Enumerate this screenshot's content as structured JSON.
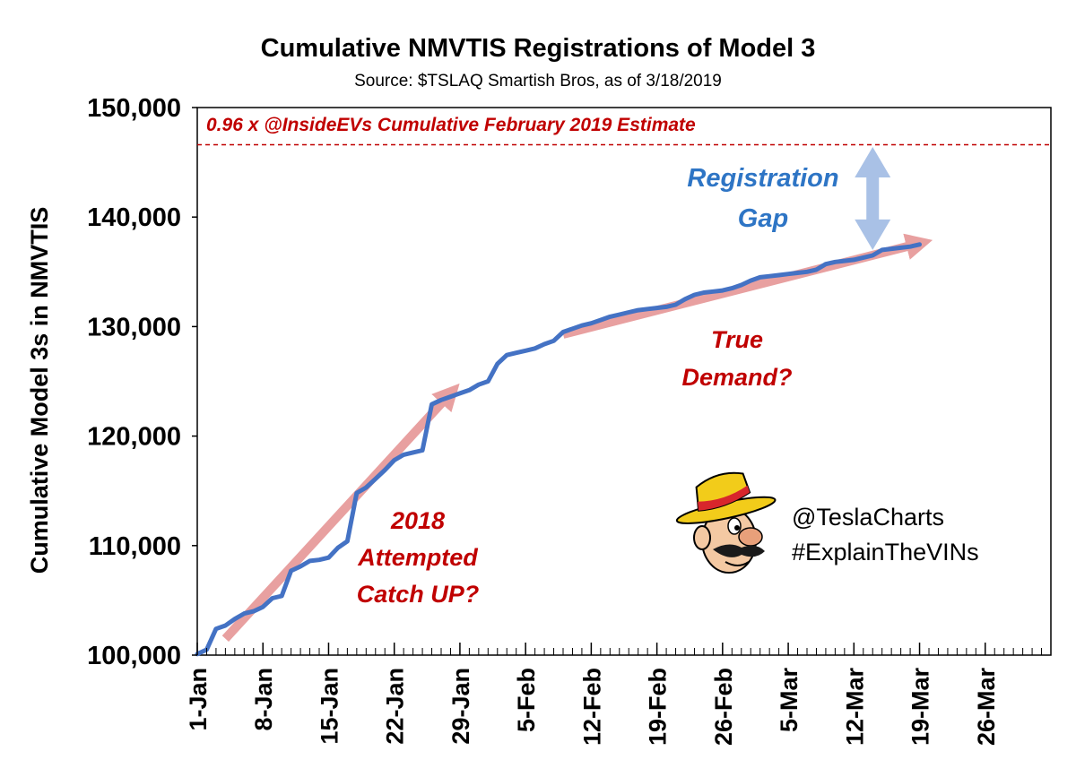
{
  "chart_data": {
    "type": "line",
    "title": "Cumulative NMVTIS Registrations of Model 3",
    "subtitle": "Source: $TSLAQ Smartish Bros, as of 3/18/2019",
    "xlabel": "",
    "ylabel": "Cumulative Model 3s in NMVTIS",
    "ylim": [
      100000,
      150000
    ],
    "yticks": [
      "100,000",
      "110,000",
      "120,000",
      "130,000",
      "140,000",
      "150,000"
    ],
    "xlim": [
      "1-Jan",
      "2-Apr"
    ],
    "xticks": [
      "1-Jan",
      "8-Jan",
      "15-Jan",
      "22-Jan",
      "29-Jan",
      "5-Feb",
      "12-Feb",
      "19-Feb",
      "26-Feb",
      "5-Mar",
      "12-Mar",
      "19-Mar",
      "26-Mar"
    ],
    "grid": false,
    "series": [
      {
        "color": "#4472c4",
        "points": [
          [
            "1-Jan",
            100100
          ],
          [
            "2-Jan",
            100500
          ],
          [
            "3-Jan",
            102400
          ],
          [
            "4-Jan",
            102700
          ],
          [
            "5-Jan",
            103300
          ],
          [
            "6-Jan",
            103800
          ],
          [
            "7-Jan",
            104000
          ],
          [
            "8-Jan",
            104400
          ],
          [
            "9-Jan",
            105200
          ],
          [
            "10-Jan",
            105400
          ],
          [
            "11-Jan",
            107700
          ],
          [
            "12-Jan",
            108100
          ],
          [
            "13-Jan",
            108600
          ],
          [
            "14-Jan",
            108700
          ],
          [
            "15-Jan",
            108900
          ],
          [
            "16-Jan",
            109800
          ],
          [
            "17-Jan",
            110400
          ],
          [
            "18-Jan",
            114800
          ],
          [
            "19-Jan",
            115300
          ],
          [
            "20-Jan",
            116100
          ],
          [
            "21-Jan",
            116900
          ],
          [
            "22-Jan",
            117800
          ],
          [
            "23-Jan",
            118300
          ],
          [
            "24-Jan",
            118500
          ],
          [
            "25-Jan",
            118700
          ],
          [
            "26-Jan",
            122900
          ],
          [
            "27-Jan",
            123300
          ],
          [
            "28-Jan",
            123600
          ],
          [
            "29-Jan",
            123900
          ],
          [
            "30-Jan",
            124200
          ],
          [
            "31-Jan",
            124700
          ],
          [
            "1-Feb",
            125000
          ],
          [
            "2-Feb",
            126600
          ],
          [
            "3-Feb",
            127400
          ],
          [
            "4-Feb",
            127600
          ],
          [
            "5-Feb",
            127800
          ],
          [
            "6-Feb",
            128000
          ],
          [
            "7-Feb",
            128400
          ],
          [
            "8-Feb",
            128700
          ],
          [
            "9-Feb",
            129500
          ],
          [
            "10-Feb",
            129800
          ],
          [
            "11-Feb",
            130100
          ],
          [
            "12-Feb",
            130300
          ],
          [
            "13-Feb",
            130600
          ],
          [
            "14-Feb",
            130900
          ],
          [
            "15-Feb",
            131100
          ],
          [
            "16-Feb",
            131300
          ],
          [
            "17-Feb",
            131500
          ],
          [
            "18-Feb",
            131600
          ],
          [
            "19-Feb",
            131700
          ],
          [
            "20-Feb",
            131800
          ],
          [
            "21-Feb",
            132000
          ],
          [
            "22-Feb",
            132500
          ],
          [
            "23-Feb",
            132900
          ],
          [
            "24-Feb",
            133100
          ],
          [
            "25-Feb",
            133200
          ],
          [
            "26-Feb",
            133300
          ],
          [
            "27-Feb",
            133500
          ],
          [
            "28-Feb",
            133800
          ],
          [
            "1-Mar",
            134200
          ],
          [
            "2-Mar",
            134500
          ],
          [
            "3-Mar",
            134600
          ],
          [
            "4-Mar",
            134700
          ],
          [
            "5-Mar",
            134800
          ],
          [
            "6-Mar",
            134900
          ],
          [
            "7-Mar",
            135000
          ],
          [
            "8-Mar",
            135200
          ],
          [
            "9-Mar",
            135700
          ],
          [
            "10-Mar",
            135900
          ],
          [
            "11-Mar",
            136000
          ],
          [
            "12-Mar",
            136100
          ],
          [
            "13-Mar",
            136300
          ],
          [
            "14-Mar",
            136500
          ],
          [
            "15-Mar",
            137000
          ],
          [
            "16-Mar",
            137100
          ],
          [
            "17-Mar",
            137200
          ],
          [
            "18-Mar",
            137300
          ],
          [
            "19-Mar",
            137500
          ]
        ]
      }
    ],
    "trend_arrows": [
      {
        "color": "#e8a0a0",
        "from": [
          "4-Jan",
          101500
        ],
        "to": [
          "28-Jan",
          123900
        ]
      },
      {
        "color": "#e8a0a0",
        "from": [
          "9-Feb",
          129300
        ],
        "to": [
          "19-Mar",
          137600
        ]
      }
    ],
    "reference_line": {
      "y": 146600,
      "color": "#c00000",
      "label": "0.96 x @InsideEVs Cumulative  February 2019 Estimate"
    },
    "gap_arrow": {
      "color": "#a9c1e6",
      "x": "14-Mar",
      "from_y": 137000,
      "to_y": 146400
    },
    "annotations": {
      "catch_up": [
        "2018",
        "Attempted",
        "Catch UP?"
      ],
      "true_demand": [
        "True",
        "Demand?"
      ],
      "registration_gap": [
        "Registration",
        "Gap"
      ]
    },
    "credits": {
      "handle": "@TeslaCharts",
      "hashtag": "#ExplainTheVINs"
    }
  }
}
